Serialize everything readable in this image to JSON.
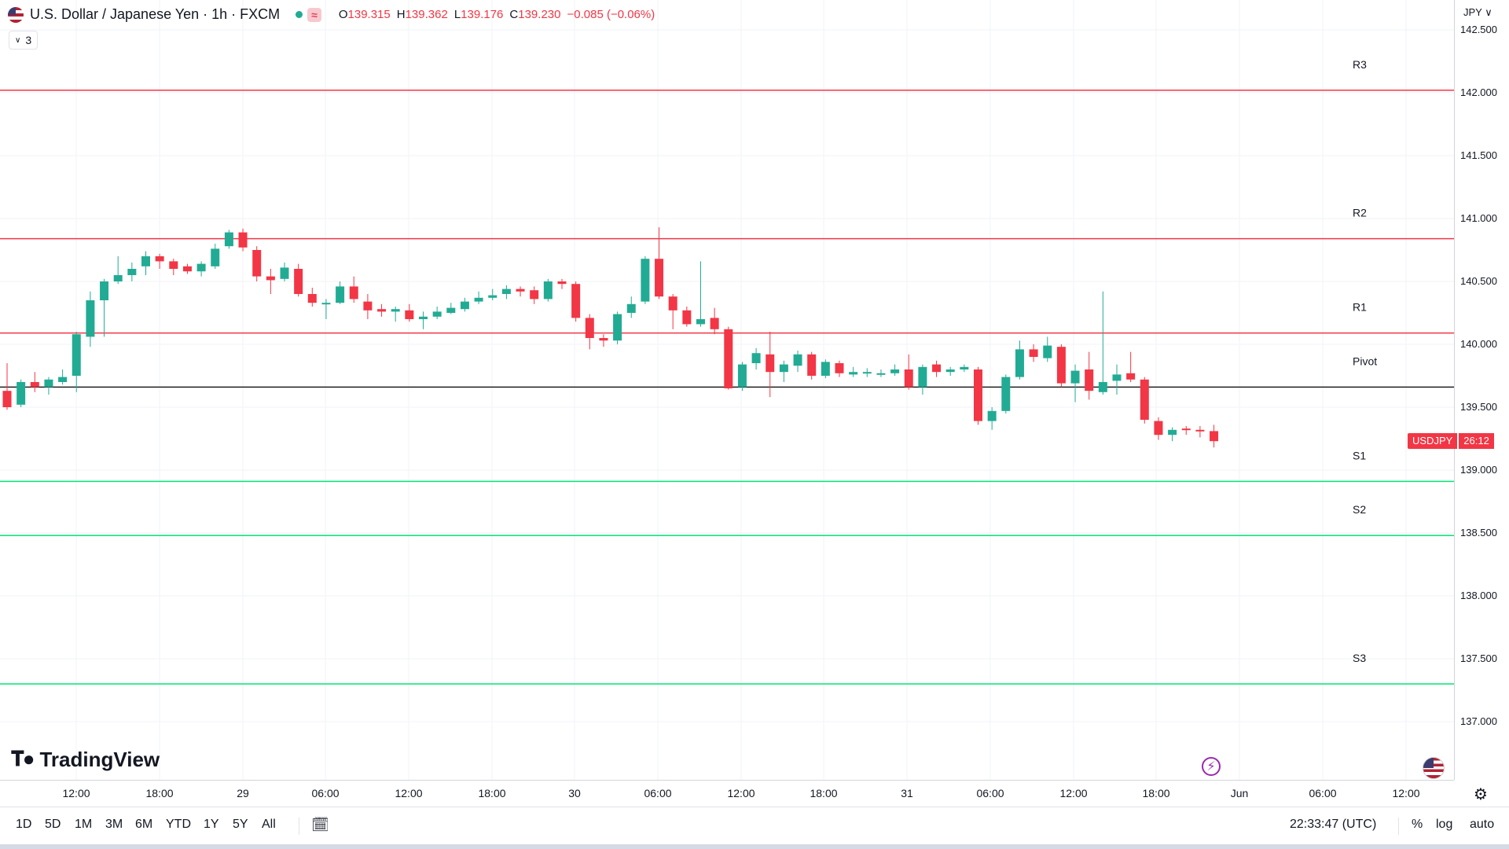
{
  "legend": {
    "title": "U.S. Dollar / Japanese Yen · 1h · FXCM",
    "wave_icon": "≈",
    "open_label": "O",
    "open": "139.315",
    "high_label": "H",
    "high": "139.362",
    "low_label": "L",
    "low": "139.176",
    "close_label": "C",
    "close": "139.230",
    "change": "−0.085 (−0.06%)"
  },
  "indicators_count": "3",
  "logo_text": "TradingView",
  "price_axis": {
    "currency": "JPY",
    "ticks": [
      "142.500",
      "142.000",
      "141.500",
      "141.000",
      "140.500",
      "140.000",
      "139.500",
      "139.000",
      "138.500",
      "138.000",
      "137.500",
      "137.000"
    ]
  },
  "price_tag": {
    "symbol": "USDJPY",
    "countdown": "26:12"
  },
  "time_axis": {
    "labels": [
      "12:00",
      "18:00",
      "29",
      "06:00",
      "12:00",
      "18:00",
      "30",
      "06:00",
      "12:00",
      "18:00",
      "31",
      "06:00",
      "12:00",
      "18:00",
      "Jun",
      "06:00",
      "12:00"
    ]
  },
  "bottom_bar": {
    "ranges": [
      "1D",
      "5D",
      "1M",
      "3M",
      "6M",
      "YTD",
      "1Y",
      "5Y",
      "All"
    ],
    "clock": "22:33:47 (UTC)",
    "percent": "%",
    "log": "log",
    "auto": "auto"
  },
  "colors": {
    "up": "#22ab94",
    "down": "#f23645",
    "resistance": "#f23645",
    "support": "#00e676",
    "pivot": "#000000",
    "grid": "#f0f3fa"
  },
  "chart_data": {
    "type": "candlestick",
    "symbol": "USDJPY",
    "interval": "1h",
    "ylim": [
      136.65,
      142.55
    ],
    "pivot_levels": [
      {
        "name": "R3",
        "value": 142.02
      },
      {
        "name": "R2",
        "value": 140.84
      },
      {
        "name": "R1",
        "value": 140.09
      },
      {
        "name": "Pivot",
        "value": 139.66
      },
      {
        "name": "S1",
        "value": 138.91
      },
      {
        "name": "S2",
        "value": 138.48
      },
      {
        "name": "S3",
        "value": 137.3
      }
    ],
    "candles": [
      [
        139.63,
        139.5,
        139.85,
        139.48
      ],
      [
        139.52,
        139.7,
        139.72,
        139.5
      ],
      [
        139.7,
        139.66,
        139.78,
        139.62
      ],
      [
        139.66,
        139.72,
        139.74,
        139.6
      ],
      [
        139.7,
        139.74,
        139.8,
        139.68
      ],
      [
        139.75,
        140.08,
        140.1,
        139.62
      ],
      [
        140.06,
        140.35,
        140.42,
        139.98
      ],
      [
        140.35,
        140.5,
        140.52,
        140.06
      ],
      [
        140.5,
        140.55,
        140.7,
        140.48
      ],
      [
        140.55,
        140.6,
        140.65,
        140.5
      ],
      [
        140.62,
        140.7,
        140.74,
        140.55
      ],
      [
        140.7,
        140.66,
        140.72,
        140.6
      ],
      [
        140.66,
        140.6,
        140.68,
        140.55
      ],
      [
        140.62,
        140.58,
        140.64,
        140.56
      ],
      [
        140.58,
        140.64,
        140.66,
        140.54
      ],
      [
        140.62,
        140.76,
        140.8,
        140.6
      ],
      [
        140.78,
        140.89,
        140.91,
        140.76
      ],
      [
        140.89,
        140.77,
        140.92,
        140.74
      ],
      [
        140.75,
        140.54,
        140.78,
        140.5
      ],
      [
        140.54,
        140.51,
        140.6,
        140.4
      ],
      [
        140.52,
        140.61,
        140.65,
        140.5
      ],
      [
        140.6,
        140.4,
        140.64,
        140.38
      ],
      [
        140.4,
        140.33,
        140.45,
        140.3
      ],
      [
        140.32,
        140.33,
        140.36,
        140.2
      ],
      [
        140.33,
        140.46,
        140.5,
        140.32
      ],
      [
        140.46,
        140.36,
        140.54,
        140.33
      ],
      [
        140.34,
        140.27,
        140.4,
        140.2
      ],
      [
        140.28,
        140.26,
        140.32,
        140.22
      ],
      [
        140.26,
        140.28,
        140.3,
        140.18
      ],
      [
        140.27,
        140.2,
        140.32,
        140.18
      ],
      [
        140.2,
        140.22,
        140.26,
        140.12
      ],
      [
        140.22,
        140.26,
        140.3,
        140.2
      ],
      [
        140.25,
        140.29,
        140.33,
        140.24
      ],
      [
        140.28,
        140.34,
        140.37,
        140.26
      ],
      [
        140.34,
        140.37,
        140.42,
        140.32
      ],
      [
        140.37,
        140.39,
        140.44,
        140.35
      ],
      [
        140.4,
        140.44,
        140.47,
        140.36
      ],
      [
        140.44,
        140.42,
        140.46,
        140.38
      ],
      [
        140.43,
        140.36,
        140.46,
        140.32
      ],
      [
        140.36,
        140.5,
        140.52,
        140.34
      ],
      [
        140.5,
        140.48,
        140.52,
        140.44
      ],
      [
        140.48,
        140.21,
        140.5,
        140.18
      ],
      [
        140.21,
        140.05,
        140.24,
        139.96
      ],
      [
        140.05,
        140.03,
        140.08,
        139.98
      ],
      [
        140.03,
        140.24,
        140.26,
        140.0
      ],
      [
        140.25,
        140.32,
        140.38,
        140.21
      ],
      [
        140.34,
        140.68,
        140.7,
        140.32
      ],
      [
        140.68,
        140.38,
        140.93,
        140.36
      ],
      [
        140.38,
        140.27,
        140.4,
        140.12
      ],
      [
        140.27,
        140.16,
        140.3,
        140.14
      ],
      [
        140.16,
        140.2,
        140.66,
        140.14
      ],
      [
        140.21,
        140.12,
        140.29,
        140.08
      ],
      [
        140.12,
        139.65,
        140.14,
        139.64
      ],
      [
        139.66,
        139.84,
        139.86,
        139.63
      ],
      [
        139.85,
        139.93,
        139.97,
        139.8
      ],
      [
        139.92,
        139.78,
        140.1,
        139.58
      ],
      [
        139.78,
        139.84,
        139.87,
        139.7
      ],
      [
        139.83,
        139.92,
        139.95,
        139.78
      ],
      [
        139.92,
        139.75,
        139.94,
        139.72
      ],
      [
        139.75,
        139.86,
        139.88,
        139.73
      ],
      [
        139.85,
        139.77,
        139.87,
        139.74
      ],
      [
        139.76,
        139.78,
        139.82,
        139.74
      ],
      [
        139.78,
        139.78,
        139.81,
        139.74
      ],
      [
        139.77,
        139.77,
        139.8,
        139.74
      ],
      [
        139.77,
        139.8,
        139.84,
        139.75
      ],
      [
        139.8,
        139.66,
        139.92,
        139.64
      ],
      [
        139.66,
        139.82,
        139.84,
        139.6
      ],
      [
        139.84,
        139.78,
        139.87,
        139.74
      ],
      [
        139.78,
        139.8,
        139.82,
        139.75
      ],
      [
        139.8,
        139.82,
        139.84,
        139.78
      ],
      [
        139.8,
        139.39,
        139.82,
        139.36
      ],
      [
        139.39,
        139.47,
        139.5,
        139.32
      ],
      [
        139.47,
        139.74,
        139.76,
        139.45
      ],
      [
        139.74,
        139.96,
        140.03,
        139.72
      ],
      [
        139.96,
        139.9,
        140.0,
        139.86
      ],
      [
        139.89,
        139.99,
        140.06,
        139.86
      ],
      [
        139.98,
        139.69,
        140.0,
        139.66
      ],
      [
        139.69,
        139.79,
        139.84,
        139.54
      ],
      [
        139.8,
        139.63,
        139.94,
        139.56
      ],
      [
        139.62,
        139.7,
        140.42,
        139.6
      ],
      [
        139.71,
        139.76,
        139.84,
        139.6
      ],
      [
        139.77,
        139.72,
        139.94,
        139.7
      ],
      [
        139.72,
        139.4,
        139.74,
        139.37
      ],
      [
        139.39,
        139.28,
        139.42,
        139.24
      ],
      [
        139.28,
        139.32,
        139.34,
        139.23
      ],
      [
        139.33,
        139.32,
        139.35,
        139.28
      ],
      [
        139.32,
        139.31,
        139.35,
        139.26
      ],
      [
        139.31,
        139.23,
        139.36,
        139.18
      ]
    ]
  }
}
